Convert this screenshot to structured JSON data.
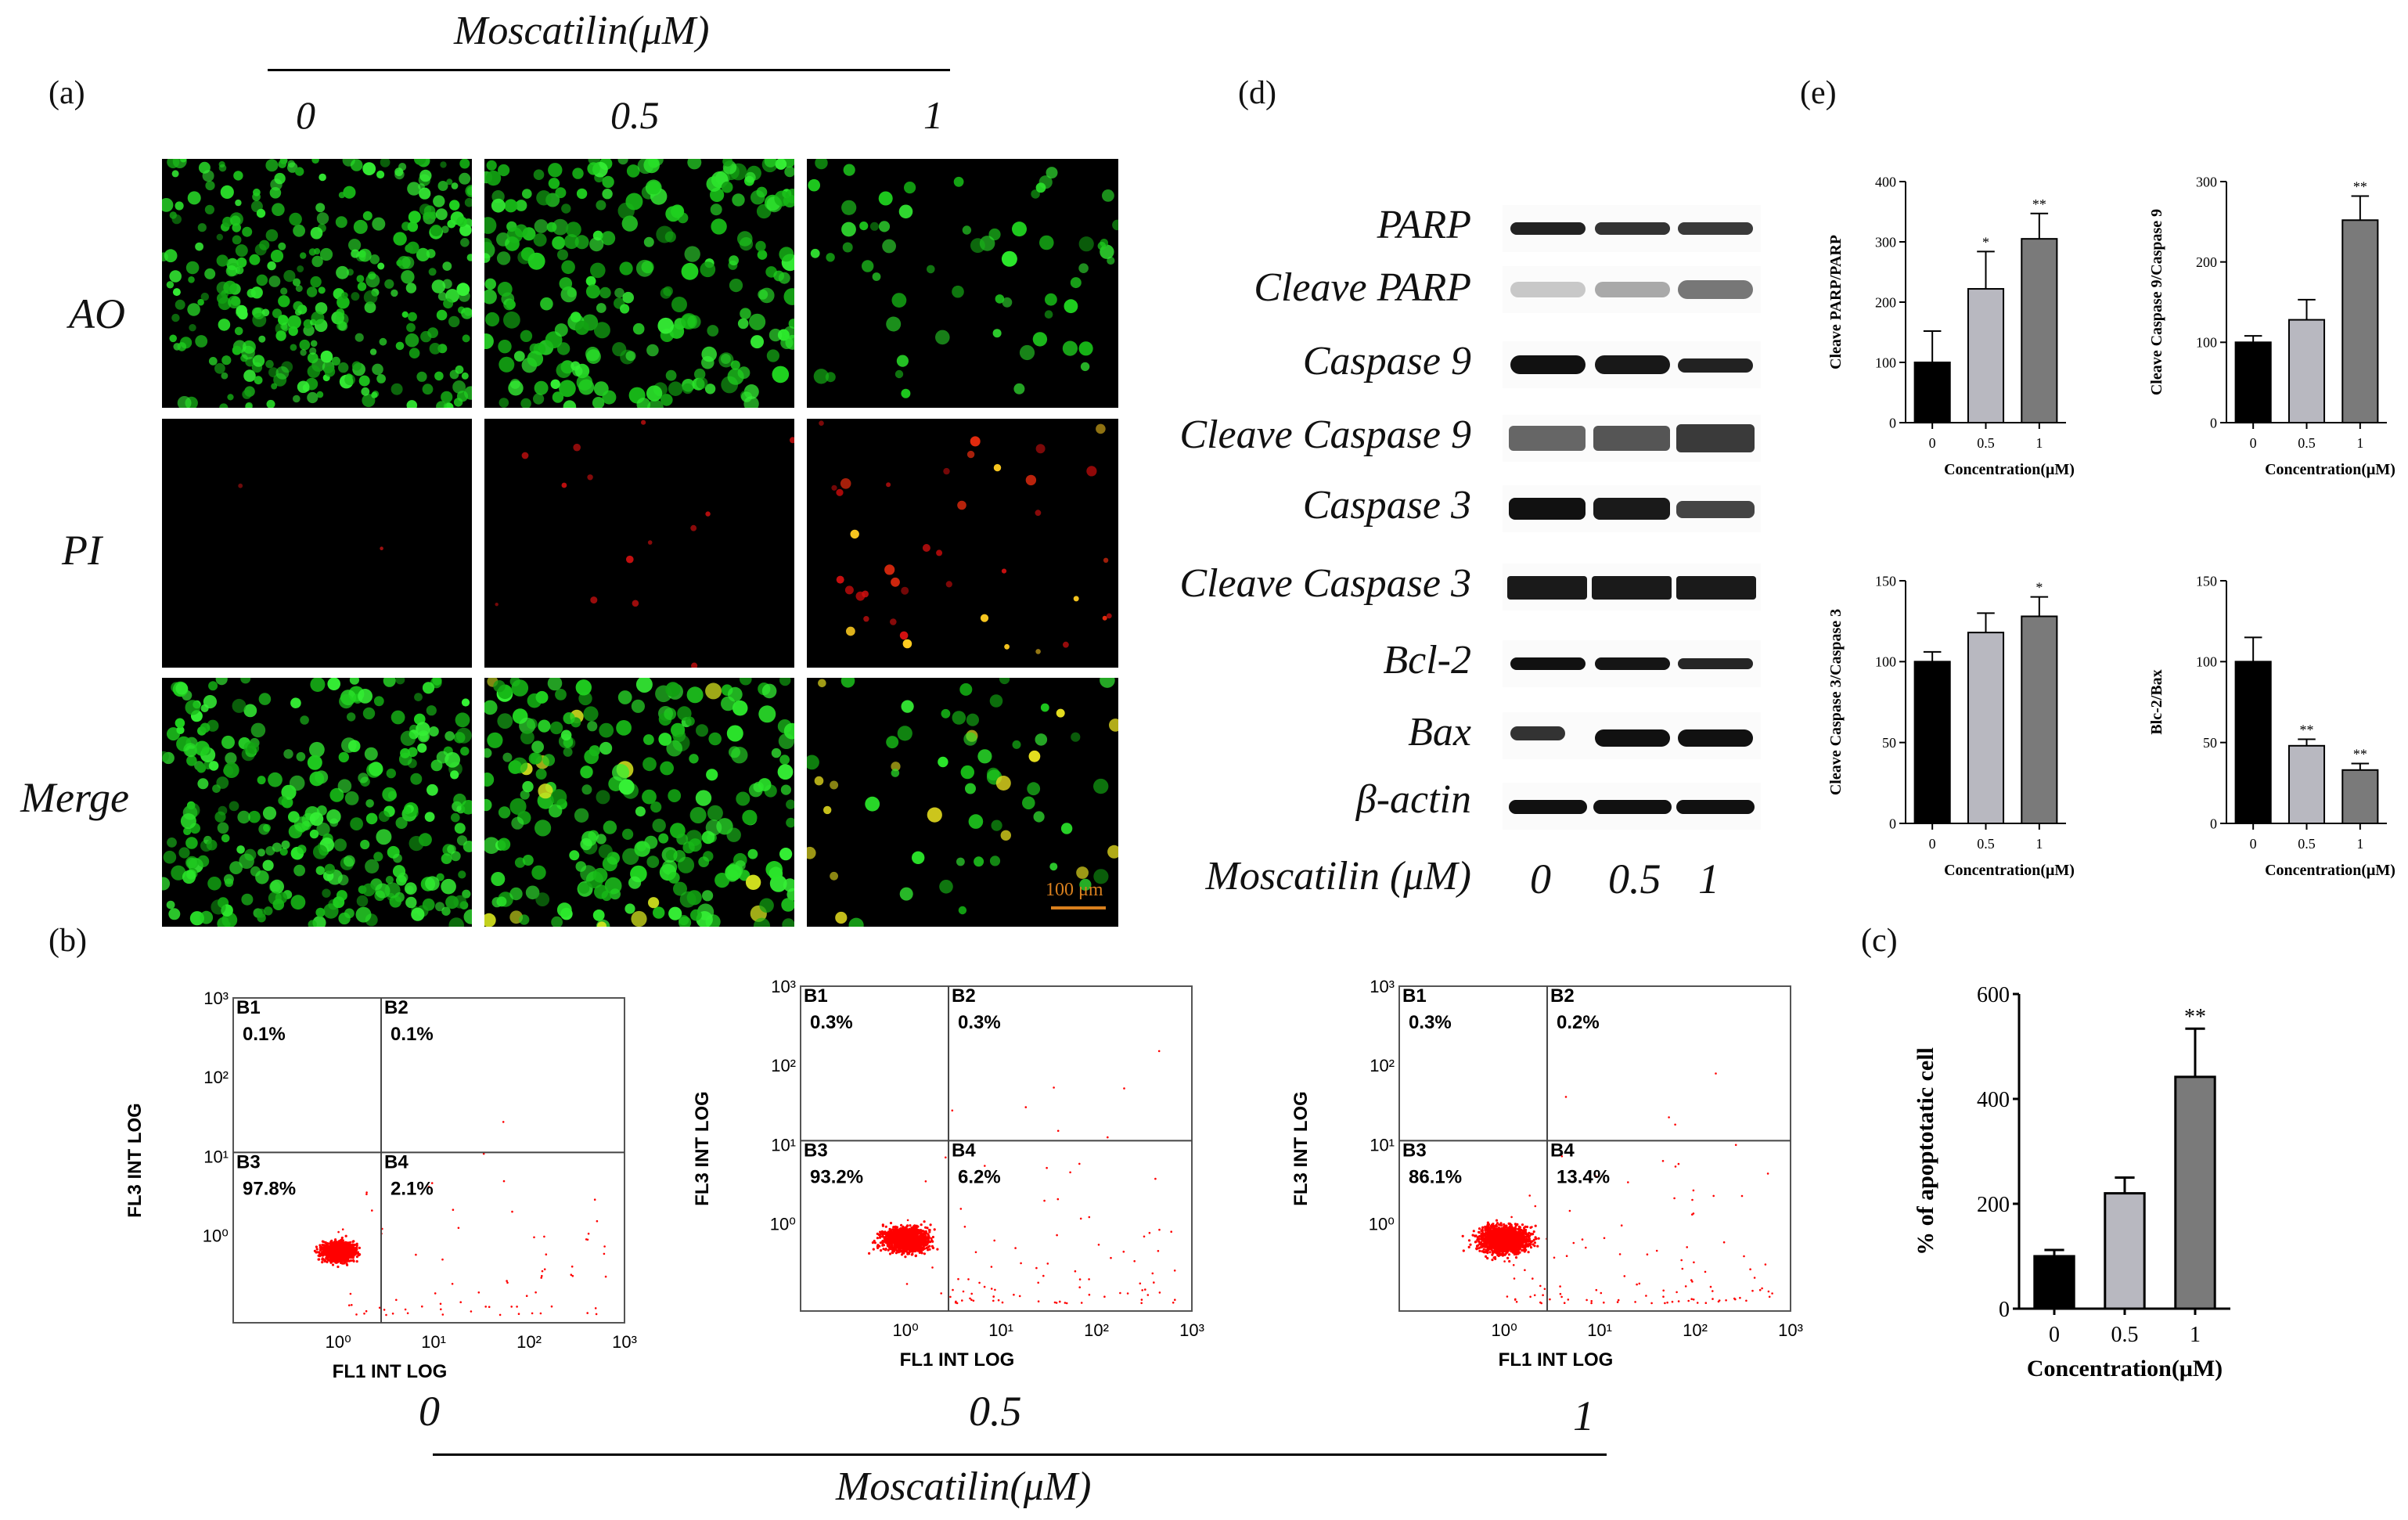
{
  "figure": {
    "treatment_title": "Moscatilin(μM)",
    "treatment_title_bottom": "Moscatilin(μM)",
    "concentrations": [
      "0",
      "0.5",
      "1"
    ],
    "panel_a": {
      "label": "(a)",
      "rows": [
        "AO",
        "PI",
        "Merge"
      ],
      "scale_bar": "100 μm"
    },
    "panel_b": {
      "label": "(b)",
      "x_axis": "FL1 INT LOG",
      "y_axis": "FL3 INT LOG",
      "x_ticks": [
        "10⁰",
        "10¹",
        "10²",
        "10³"
      ],
      "y_ticks": [
        "10⁰",
        "10¹",
        "10²",
        "10³"
      ],
      "plots": [
        {
          "condition": "0",
          "B1": "0.1%",
          "B2": "0.1%",
          "B3": "97.8%",
          "B4": "2.1%"
        },
        {
          "condition": "0.5",
          "B1": "0.3%",
          "B2": "0.3%",
          "B3": "93.2%",
          "B4": "6.2%"
        },
        {
          "condition": "1",
          "B1": "0.3%",
          "B2": "0.2%",
          "B3": "86.1%",
          "B4": "13.4%"
        }
      ],
      "quadrant_names": [
        "B1",
        "B2",
        "B3",
        "B4"
      ]
    },
    "panel_c": {
      "label": "(c)"
    },
    "panel_d": {
      "label": "(d)",
      "proteins": [
        "PARP",
        "Cleave PARP",
        "Caspase 9",
        "Cleave Caspase 9",
        "Caspase 3",
        "Cleave Caspase 3",
        "Bcl-2",
        "Bax",
        "β-actin"
      ],
      "x_title": "Moscatilin (μM)",
      "lanes": [
        "0",
        "0.5",
        "1"
      ]
    },
    "panel_e": {
      "label": "(e)"
    }
  },
  "chart_data": [
    {
      "id": "e1",
      "type": "bar",
      "categories": [
        "0",
        "0.5",
        "1"
      ],
      "values": [
        100,
        222,
        305
      ],
      "errors": [
        52,
        62,
        42
      ],
      "significance": [
        "",
        "*",
        "**"
      ],
      "ylabel": "Cleave PARP/PARP",
      "xlabel": "Concentration(μM)",
      "ylim": [
        0,
        400
      ],
      "yticks": [
        0,
        100,
        200,
        300,
        400
      ]
    },
    {
      "id": "e2",
      "type": "bar",
      "categories": [
        "0",
        "0.5",
        "1"
      ],
      "values": [
        100,
        128,
        252
      ],
      "errors": [
        8,
        25,
        30
      ],
      "significance": [
        "",
        "",
        "**"
      ],
      "ylabel": "Cleave Caspase 9/Caspase 9",
      "xlabel": "Concentration(μM)",
      "ylim": [
        0,
        300
      ],
      "yticks": [
        0,
        100,
        200,
        300
      ]
    },
    {
      "id": "e3",
      "type": "bar",
      "categories": [
        "0",
        "0.5",
        "1"
      ],
      "values": [
        100,
        118,
        128
      ],
      "errors": [
        6,
        12,
        12
      ],
      "significance": [
        "",
        "",
        "*"
      ],
      "ylabel": "Cleave Caspase 3/Caspase 3",
      "xlabel": "Concentration(μM)",
      "ylim": [
        0,
        150
      ],
      "yticks": [
        0,
        50,
        100,
        150
      ]
    },
    {
      "id": "e4",
      "type": "bar",
      "categories": [
        "0",
        "0.5",
        "1"
      ],
      "values": [
        100,
        48,
        33
      ],
      "errors": [
        15,
        4,
        4
      ],
      "significance": [
        "",
        "**",
        "**"
      ],
      "ylabel": "Blc-2/Bax",
      "xlabel": "Concentration(μM)",
      "ylim": [
        0,
        150
      ],
      "yticks": [
        0,
        50,
        100,
        150
      ]
    },
    {
      "id": "c",
      "type": "bar",
      "categories": [
        "0",
        "0.5",
        "1"
      ],
      "values": [
        100,
        220,
        442
      ],
      "errors": [
        12,
        30,
        92
      ],
      "significance": [
        "",
        "",
        "**"
      ],
      "ylabel": "% of apoptotatic cell",
      "xlabel": "Concentration(μM)",
      "ylim": [
        0,
        600
      ],
      "yticks": [
        0,
        200,
        400,
        600
      ]
    }
  ],
  "colors": {
    "black_bar": "#000000",
    "light_bar": "#b8b8c0",
    "dark_bar": "#7a7a7a",
    "ao_green": "#1fd01f",
    "pi_red": "#d41010",
    "flow_red": "#ff0000",
    "scale": "#d9801e"
  }
}
